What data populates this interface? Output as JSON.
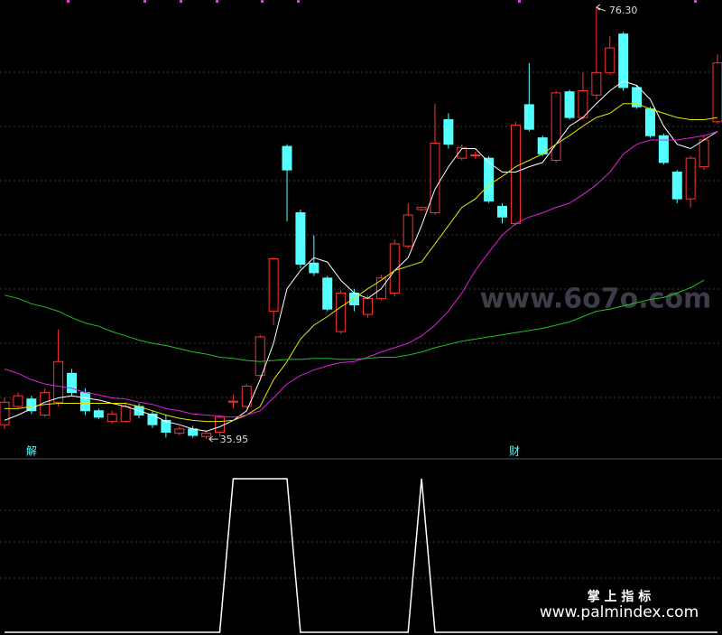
{
  "chart_data": [
    {
      "type": "candlestick",
      "ylim": [
        34.36,
        76.98
      ],
      "up_color": "#ff3232",
      "down_color": "#54ffff",
      "open": [
        37.3,
        39.0,
        39.7,
        38.2,
        39.4,
        42.1,
        40.3,
        38.6,
        37.6,
        37.6,
        39.0,
        38.3,
        37.7,
        36.5,
        36.9,
        36.2,
        36.6,
        39.4,
        39.0,
        41.9,
        47.9,
        63.3,
        57.1,
        52.4,
        51.0,
        46.0,
        49.6,
        47.6,
        49.1,
        49.6,
        54.0,
        57.4,
        57.1,
        65.8,
        62.2,
        62.5,
        62.2,
        57.7,
        56.1,
        67.2,
        64.1,
        62.0,
        68.4,
        66.0,
        68.1,
        70.2,
        73.8,
        68.8,
        66.8,
        64.3,
        60.9,
        58.4,
        61.4,
        65.6
      ],
      "high": [
        39.8,
        40.3,
        40.0,
        40.7,
        46.2,
        42.5,
        40.7,
        38.8,
        38.6,
        39.4,
        39.3,
        38.6,
        38.2,
        37.1,
        37.2,
        36.7,
        38.2,
        40.1,
        41.1,
        45.7,
        52.9,
        63.5,
        57.4,
        55.0,
        51.2,
        49.9,
        50.0,
        49.4,
        51.3,
        54.6,
        58.0,
        57.7,
        67.3,
        66.4,
        63.5,
        62.8,
        62.4,
        58.0,
        65.6,
        71.1,
        64.3,
        68.5,
        68.6,
        70.2,
        76.3,
        73.6,
        74.0,
        69.0,
        67.0,
        64.5,
        61.1,
        62.4,
        64.3,
        71.9
      ],
      "low": [
        36.9,
        38.8,
        38.3,
        38.0,
        39.0,
        40.0,
        38.2,
        37.8,
        37.4,
        37.5,
        37.9,
        37.0,
        36.1,
        36.3,
        36.1,
        35.95,
        36.2,
        38.8,
        38.8,
        41.7,
        46.6,
        56.3,
        51.9,
        51.2,
        47.9,
        45.8,
        47.9,
        47.3,
        48.9,
        49.3,
        53.8,
        57.3,
        56.9,
        63.1,
        62.0,
        62.2,
        58.0,
        56.1,
        55.9,
        64.7,
        62.4,
        61.8,
        65.8,
        65.8,
        67.7,
        70.0,
        68.5,
        66.8,
        64.1,
        61.6,
        58.0,
        57.6,
        61.1,
        65.4
      ],
      "close": [
        39.4,
        40.0,
        38.6,
        40.3,
        43.2,
        40.3,
        38.6,
        38.0,
        38.3,
        39.0,
        38.2,
        37.3,
        36.6,
        36.9,
        36.3,
        36.5,
        38.0,
        39.5,
        40.9,
        45.5,
        52.8,
        61.1,
        52.3,
        51.5,
        48.1,
        49.6,
        48.5,
        49.1,
        51.0,
        54.2,
        56.9,
        57.6,
        63.6,
        63.5,
        63.2,
        62.5,
        58.2,
        56.7,
        65.3,
        64.9,
        62.6,
        68.3,
        66.0,
        68.5,
        70.2,
        72.5,
        68.8,
        67.0,
        64.3,
        61.8,
        58.4,
        62.2,
        63.9,
        71.1
      ],
      "lines": [
        {
          "color": "#ffffff",
          "values": [
            37.7,
            38.2,
            38.8,
            39.4,
            39.8,
            40.0,
            39.8,
            39.6,
            39.3,
            39.0,
            38.6,
            38.2,
            37.6,
            37.3,
            36.9,
            36.7,
            37.1,
            37.7,
            38.6,
            41.5,
            44.9,
            50.0,
            51.7,
            52.9,
            52.5,
            50.8,
            49.6,
            49.1,
            50.0,
            51.7,
            52.9,
            55.9,
            59.3,
            61.4,
            63.1,
            63.1,
            61.8,
            60.9,
            60.9,
            61.4,
            61.8,
            63.5,
            65.2,
            66.0,
            67.3,
            68.5,
            69.4,
            69.0,
            67.7,
            65.2,
            63.5,
            63.1,
            63.9,
            64.7
          ]
        },
        {
          "color": "#e6e600",
          "values": [
            38.8,
            38.8,
            39.0,
            39.2,
            39.3,
            39.3,
            39.3,
            39.3,
            39.3,
            39.3,
            39.0,
            38.6,
            38.2,
            37.9,
            37.7,
            37.6,
            37.6,
            37.7,
            38.2,
            39.0,
            41.5,
            43.2,
            45.3,
            46.6,
            47.4,
            48.3,
            49.1,
            50.0,
            50.8,
            51.7,
            52.1,
            52.5,
            54.2,
            55.9,
            57.6,
            58.4,
            59.7,
            60.5,
            61.4,
            62.0,
            62.6,
            63.5,
            64.3,
            65.2,
            66.0,
            66.4,
            67.3,
            67.3,
            66.8,
            66.4,
            66.0,
            65.8,
            65.8,
            66.0
          ]
        },
        {
          "color": "#e020e0",
          "values": [
            42.5,
            42.1,
            41.5,
            41.1,
            40.9,
            40.7,
            40.3,
            40.1,
            39.8,
            39.7,
            39.4,
            39.2,
            38.8,
            38.6,
            38.3,
            38.2,
            38.1,
            38.0,
            38.2,
            38.6,
            39.8,
            41.1,
            41.9,
            42.4,
            42.8,
            43.1,
            43.2,
            43.6,
            44.1,
            44.5,
            44.9,
            45.6,
            46.6,
            47.9,
            49.6,
            51.7,
            53.4,
            55.0,
            56.1,
            56.7,
            57.1,
            57.6,
            58.0,
            58.8,
            59.7,
            60.9,
            62.6,
            63.5,
            63.9,
            63.9,
            63.9,
            64.1,
            64.3,
            64.7
          ]
        },
        {
          "color": "#20c020",
          "values": [
            49.4,
            49.1,
            48.6,
            48.3,
            47.9,
            47.3,
            46.8,
            46.5,
            46.0,
            45.6,
            45.2,
            44.9,
            44.7,
            44.4,
            44.1,
            43.9,
            43.6,
            43.5,
            43.3,
            43.2,
            43.3,
            43.4,
            43.4,
            43.5,
            43.5,
            43.4,
            43.4,
            43.5,
            43.6,
            43.6,
            43.8,
            44.1,
            44.5,
            44.8,
            45.1,
            45.3,
            45.5,
            45.7,
            45.9,
            46.1,
            46.3,
            46.6,
            46.9,
            47.4,
            47.9,
            48.1,
            48.4,
            48.7,
            49.0,
            49.2,
            49.6,
            50.1,
            50.8,
            null
          ]
        }
      ],
      "annotations": [
        {
          "value": 76.3,
          "label": "76.30"
        },
        {
          "value": 35.95,
          "label": "35.95"
        }
      ],
      "signals": [
        "解",
        "财"
      ]
    },
    {
      "type": "line",
      "ylim": [
        0,
        1.1
      ],
      "color": "#ffffff",
      "values": [
        0,
        0,
        0,
        0,
        0,
        0,
        0,
        0,
        0,
        0,
        0,
        0,
        0,
        0,
        0,
        0,
        0,
        1,
        1,
        1,
        1,
        1,
        0,
        0,
        0,
        0,
        0,
        0,
        0,
        0,
        0,
        1,
        0,
        0,
        0,
        0,
        0,
        0,
        0,
        0,
        0,
        0,
        0,
        0,
        0,
        0,
        0,
        0,
        0,
        0,
        0,
        0,
        0,
        0
      ]
    }
  ],
  "watermarks": {
    "site": "www.6o7o.com",
    "brand": "掌 上 指 标",
    "url": "www.palmindex.com"
  }
}
